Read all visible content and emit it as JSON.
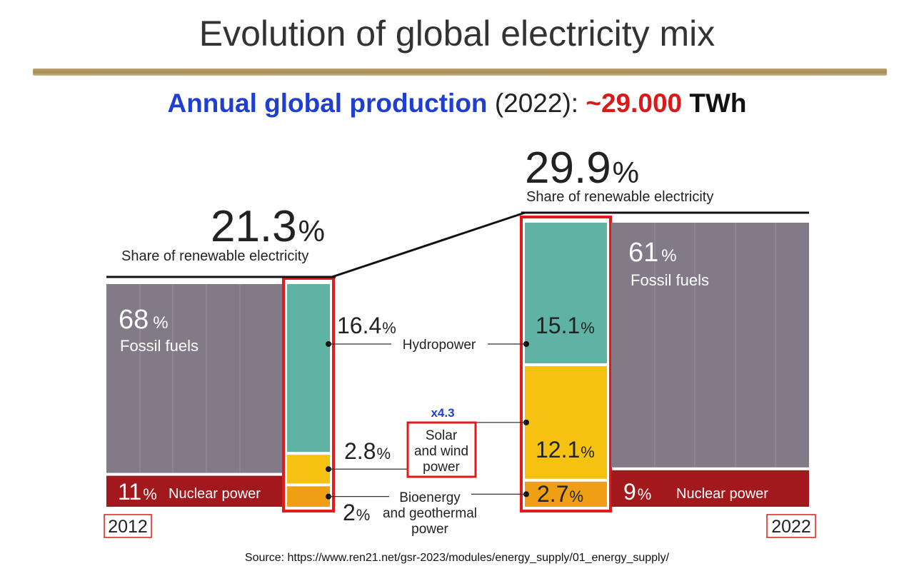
{
  "header": {
    "title": "Evolution of global electricity mix",
    "subtitle": {
      "label": "Annual global production",
      "year": "(2022):",
      "approx": "~",
      "value": "29.000",
      "unit": "TWh"
    }
  },
  "chart_data": {
    "type": "bar",
    "title": "",
    "categories": [
      "2012",
      "2022"
    ],
    "series": [
      {
        "name": "Fossil fuels",
        "values": [
          68,
          61
        ]
      },
      {
        "name": "Nuclear power",
        "values": [
          11,
          9
        ]
      },
      {
        "name": "Hydropower",
        "values": [
          16.4,
          15.1
        ]
      },
      {
        "name": "Solar and wind power",
        "values": [
          2.8,
          12.1
        ]
      },
      {
        "name": "Bioenergy and geothermal power",
        "values": [
          2,
          2.7
        ]
      }
    ],
    "renewable_share": {
      "values": [
        21.3,
        29.9
      ],
      "label": "Share of renewable electricity"
    },
    "annotation": "x4.3",
    "colors": {
      "fossil": "#827b87",
      "nuclear": "#a3181c",
      "hydro": "#5fb3a4",
      "solar_wind": "#f5c211",
      "bio": "#ee9f14",
      "highlight": "#e21a1a",
      "annotation": "#1f3fd0"
    }
  },
  "labels": {
    "pct": "%",
    "renewable_2012": "21.3",
    "renewable_2022": "29.9",
    "share_label": "Share of renewable electricity",
    "fossil_2012": "68",
    "fossil_2022": "61",
    "fossil_name": "Fossil fuels",
    "nuclear_2012": "11",
    "nuclear_2022": "9",
    "nuclear_name": "Nuclear power",
    "hydro_2012": "16.4",
    "hydro_2022": "15.1",
    "hydro_name": "Hydropower",
    "solar_2012": "2.8",
    "solar_2022": "12.1",
    "solar_name": [
      "Solar",
      "and wind",
      "power"
    ],
    "bio_2012": "2",
    "bio_2022": "2.7",
    "bio_name": [
      "Bioenergy",
      "and geothermal",
      "power"
    ],
    "annotation": "x4.3",
    "year_2012": "2012",
    "year_2022": "2022"
  },
  "source": "Source: https://www.ren21.net/gsr-2023/modules/energy_supply/01_energy_supply/"
}
